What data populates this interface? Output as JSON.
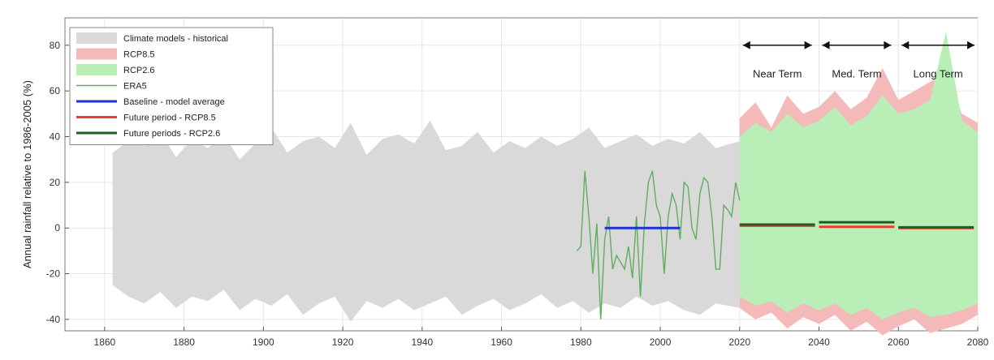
{
  "chart_data": {
    "type": "area",
    "ylabel": "Annual rainfall relative to 1986-2005 (%)",
    "xlim": [
      1850,
      2080
    ],
    "ylim": [
      -45,
      92
    ],
    "x_ticks": [
      1860,
      1880,
      1900,
      1920,
      1940,
      1960,
      1980,
      2000,
      2020,
      2040,
      2060,
      2080
    ],
    "x_tick_labels": [
      "1860",
      "1880",
      "1900",
      "1920",
      "1940",
      "1960",
      "1980",
      "2000",
      "2020",
      "2040",
      "2060",
      "2080"
    ],
    "y_ticks": [
      -40,
      -20,
      0,
      20,
      40,
      60,
      80
    ],
    "y_tick_labels": [
      "-40",
      "-20",
      "0",
      "20",
      "40",
      "60",
      "80"
    ],
    "grid": true,
    "legend_position": "top-left",
    "legend": [
      {
        "label": "Climate models - historical",
        "kind": "band",
        "color": "#d9d9d9"
      },
      {
        "label": "RCP8.5",
        "kind": "band",
        "color": "#f4b9b9"
      },
      {
        "label": "RCP2.6",
        "kind": "band",
        "color": "#b9efb6"
      },
      {
        "label": "ERA5",
        "kind": "line",
        "color": "#5fae5f"
      },
      {
        "label": "Baseline - model average",
        "kind": "line",
        "color": "#1f2fd6"
      },
      {
        "label": "Future period - RCP8.5",
        "kind": "line",
        "color": "#e8402a"
      },
      {
        "label": "Future periods - RCP2.6",
        "kind": "line",
        "color": "#1e5e24"
      }
    ],
    "historical_band": {
      "x": [
        1862,
        1866,
        1870,
        1874,
        1878,
        1882,
        1886,
        1890,
        1894,
        1898,
        1902,
        1906,
        1910,
        1914,
        1918,
        1922,
        1926,
        1930,
        1934,
        1938,
        1942,
        1946,
        1950,
        1954,
        1958,
        1962,
        1966,
        1970,
        1974,
        1978,
        1982,
        1986,
        1990,
        1994,
        1998,
        2002,
        2006,
        2010,
        2014,
        2020
      ],
      "upper": [
        33,
        38,
        36,
        42,
        31,
        39,
        35,
        41,
        30,
        37,
        44,
        33,
        38,
        40,
        35,
        46,
        32,
        39,
        41,
        37,
        47,
        34,
        36,
        42,
        33,
        38,
        35,
        40,
        36,
        39,
        44,
        35,
        38,
        41,
        36,
        39,
        37,
        42,
        35,
        38
      ],
      "lower": [
        -25,
        -30,
        -33,
        -28,
        -35,
        -30,
        -32,
        -27,
        -36,
        -31,
        -34,
        -29,
        -38,
        -33,
        -30,
        -41,
        -32,
        -35,
        -31,
        -36,
        -33,
        -30,
        -38,
        -34,
        -31,
        -36,
        -33,
        -29,
        -35,
        -32,
        -37,
        -33,
        -35,
        -30,
        -34,
        -32,
        -36,
        -38,
        -33,
        -35
      ]
    },
    "rcp85_band": {
      "x": [
        2020,
        2024,
        2028,
        2032,
        2036,
        2040,
        2044,
        2048,
        2052,
        2056,
        2060,
        2064,
        2068,
        2072,
        2076,
        2080
      ],
      "upper": [
        48,
        55,
        44,
        58,
        50,
        53,
        60,
        52,
        57,
        70,
        56,
        60,
        64,
        68,
        50,
        46
      ],
      "lower": [
        -35,
        -40,
        -37,
        -44,
        -39,
        -42,
        -38,
        -45,
        -41,
        -47,
        -43,
        -40,
        -46,
        -44,
        -42,
        -38
      ]
    },
    "rcp26_band": {
      "x": [
        2020,
        2024,
        2028,
        2032,
        2036,
        2040,
        2044,
        2048,
        2052,
        2056,
        2060,
        2064,
        2068,
        2072,
        2076,
        2080
      ],
      "upper": [
        40,
        46,
        42,
        50,
        44,
        47,
        53,
        45,
        49,
        58,
        50,
        52,
        56,
        86,
        47,
        42
      ],
      "lower": [
        -30,
        -34,
        -32,
        -37,
        -33,
        -36,
        -33,
        -38,
        -35,
        -40,
        -37,
        -35,
        -39,
        -38,
        -36,
        -33
      ]
    },
    "series": [
      {
        "name": "ERA5",
        "x": [
          1979,
          1980,
          1981,
          1982,
          1983,
          1984,
          1985,
          1986,
          1987,
          1988,
          1989,
          1990,
          1991,
          1992,
          1993,
          1994,
          1995,
          1996,
          1997,
          1998,
          1999,
          2000,
          2001,
          2002,
          2003,
          2004,
          2005,
          2006,
          2007,
          2008,
          2009,
          2010,
          2011,
          2012,
          2013,
          2014,
          2015,
          2016,
          2017,
          2018,
          2019,
          2020
        ],
        "y": [
          -10,
          -8,
          25,
          5,
          -20,
          2,
          -40,
          -5,
          5,
          -18,
          -12,
          -15,
          -18,
          -8,
          -22,
          5,
          -30,
          2,
          20,
          25,
          10,
          5,
          -20,
          5,
          15,
          10,
          -5,
          20,
          18,
          0,
          -5,
          15,
          22,
          20,
          5,
          -18,
          -18,
          10,
          8,
          5,
          20,
          12
        ]
      },
      {
        "name": "Baseline - model average",
        "x": [
          1986,
          2005
        ],
        "y": [
          0,
          0
        ]
      },
      {
        "name": "Future period - RCP8.5",
        "segments": [
          {
            "x": [
              2020,
              2039
            ],
            "y": [
              1,
              1
            ]
          },
          {
            "x": [
              2040,
              2059
            ],
            "y": [
              0.5,
              0.5
            ]
          },
          {
            "x": [
              2060,
              2079
            ],
            "y": [
              0,
              0
            ]
          }
        ]
      },
      {
        "name": "Future periods - RCP2.6",
        "segments": [
          {
            "x": [
              2020,
              2039
            ],
            "y": [
              1.5,
              1.5
            ]
          },
          {
            "x": [
              2040,
              2059
            ],
            "y": [
              2.5,
              2.5
            ]
          },
          {
            "x": [
              2060,
              2079
            ],
            "y": [
              0.3,
              0.3
            ]
          }
        ]
      }
    ],
    "periods": [
      {
        "label": "Near Term",
        "x": [
          2020,
          2039
        ]
      },
      {
        "label": "Med. Term",
        "x": [
          2040,
          2059
        ]
      },
      {
        "label": "Long Term",
        "x": [
          2060,
          2080
        ]
      }
    ]
  }
}
